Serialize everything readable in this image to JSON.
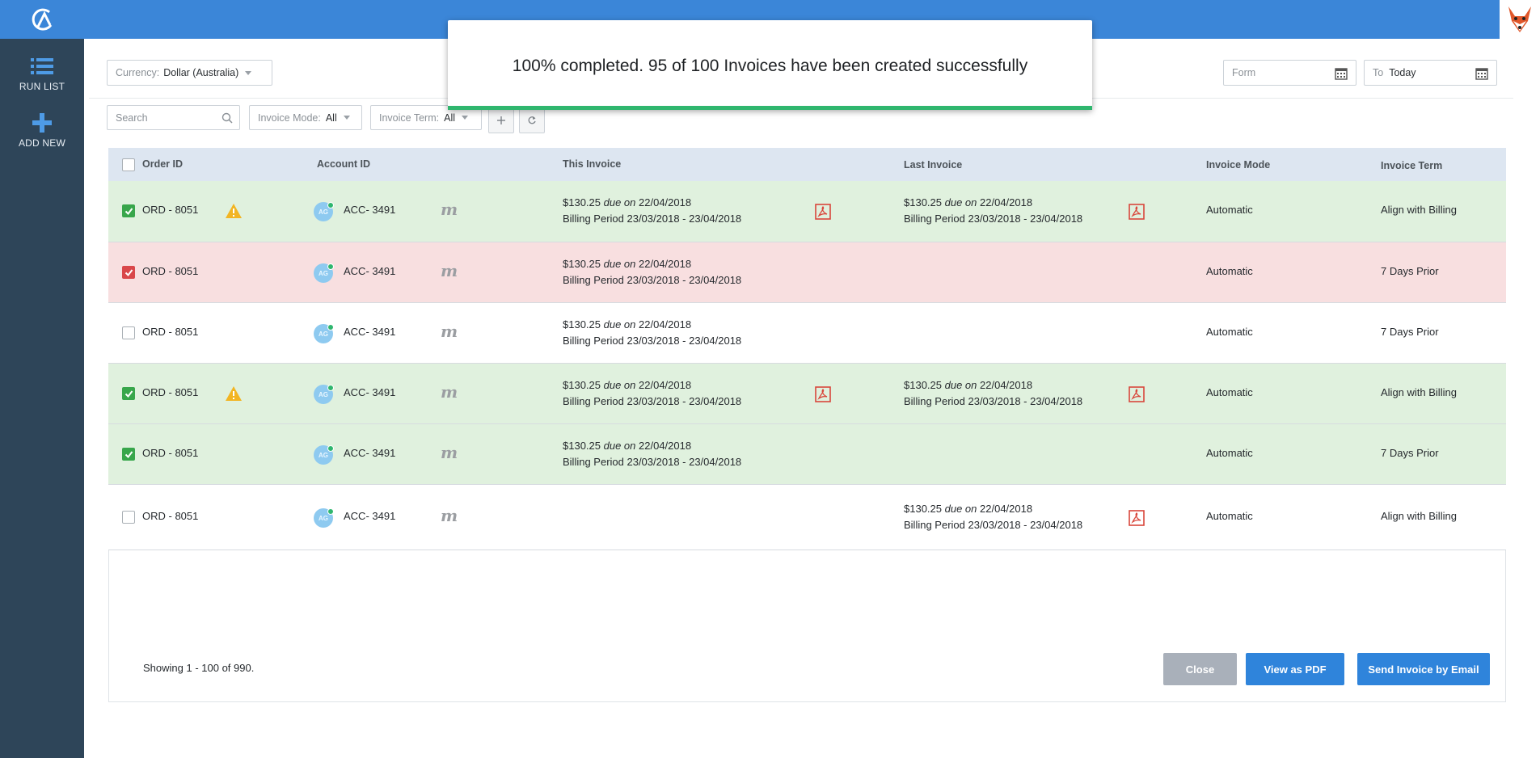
{
  "sidebar": {
    "items": [
      {
        "label": "RUN LIST",
        "icon": "list-icon"
      },
      {
        "label": "ADD NEW",
        "icon": "plus-icon"
      }
    ]
  },
  "filters": {
    "currency_label": "Currency:",
    "currency_value": "Dollar (Australia)",
    "from_placeholder": "Form",
    "to_label": "To",
    "to_value": "Today",
    "search_placeholder": "Search",
    "invoice_mode_label": "Invoice Mode:",
    "invoice_mode_value": "All",
    "invoice_term_label": "Invoice Term:",
    "invoice_term_value": "All"
  },
  "modal": {
    "message": "100% completed. 95 of 100 Invoices have been created successfully",
    "progress": 1.0,
    "color": "#2fb66e"
  },
  "table": {
    "headers": {
      "order_id": "Order ID",
      "account_id": "Account ID",
      "this_invoice": "This Invoice",
      "last_invoice": "Last Invoice",
      "invoice_mode": "Invoice Mode",
      "invoice_term": "Invoice Term"
    },
    "rows": [
      {
        "status": "green",
        "checked": true,
        "order": "ORD - 8051",
        "warning": true,
        "avatar": "AG",
        "account": "ACC- 3491",
        "this_amount": "$130.25",
        "this_due_word": "due on",
        "this_due": "22/04/2018",
        "this_period": "Billing Period 23/03/2018 - 23/04/2018",
        "this_pdf": true,
        "last_amount": "$130.25",
        "last_due_word": "due on",
        "last_due": "22/04/2018",
        "last_period": "Billing Period 23/03/2018 - 23/04/2018",
        "last_pdf": true,
        "mode": "Automatic",
        "term": "Align with Billing"
      },
      {
        "status": "red",
        "checked": true,
        "order": "ORD - 8051",
        "warning": false,
        "avatar": "AG",
        "account": "ACC- 3491",
        "this_amount": "$130.25",
        "this_due_word": "due on",
        "this_due": "22/04/2018",
        "this_period": "Billing Period 23/03/2018 - 23/04/2018",
        "this_pdf": false,
        "last_amount": "",
        "last_due_word": "",
        "last_due": "",
        "last_period": "",
        "last_pdf": false,
        "mode": "Automatic",
        "term": "7 Days Prior"
      },
      {
        "status": "white",
        "checked": false,
        "order": "ORD - 8051",
        "warning": false,
        "avatar": "AG",
        "account": "ACC- 3491",
        "this_amount": "$130.25",
        "this_due_word": "due on",
        "this_due": "22/04/2018",
        "this_period": "Billing Period 23/03/2018 - 23/04/2018",
        "this_pdf": false,
        "last_amount": "",
        "last_due_word": "",
        "last_due": "",
        "last_period": "",
        "last_pdf": false,
        "mode": "Automatic",
        "term": "7 Days Prior"
      },
      {
        "status": "green",
        "checked": true,
        "order": "ORD - 8051",
        "warning": true,
        "avatar": "AG",
        "account": "ACC- 3491",
        "this_amount": "$130.25",
        "this_due_word": "due on",
        "this_due": "22/04/2018",
        "this_period": "Billing Period 23/03/2018 - 23/04/2018",
        "this_pdf": true,
        "last_amount": "$130.25",
        "last_due_word": "due on",
        "last_due": "22/04/2018",
        "last_period": "Billing Period 23/03/2018 - 23/04/2018",
        "last_pdf": true,
        "mode": "Automatic",
        "term": "Align with Billing"
      },
      {
        "status": "green",
        "checked": true,
        "order": "ORD - 8051",
        "warning": false,
        "avatar": "AG",
        "account": "ACC- 3491",
        "this_amount": "$130.25",
        "this_due_word": "due on",
        "this_due": "22/04/2018",
        "this_period": "Billing Period 23/03/2018 - 23/04/2018",
        "this_pdf": false,
        "last_amount": "",
        "last_due_word": "",
        "last_due": "",
        "last_period": "",
        "last_pdf": false,
        "mode": "Automatic",
        "term": "7 Days Prior"
      },
      {
        "status": "white",
        "checked": false,
        "order": "ORD - 8051",
        "warning": false,
        "avatar": "AG",
        "account": "ACC- 3491",
        "this_amount": "",
        "this_due_word": "",
        "this_due": "",
        "this_period": "",
        "this_pdf": false,
        "last_amount": "$130.25",
        "last_due_word": "due on",
        "last_due": "22/04/2018",
        "last_period": "Billing Period 23/03/2018 - 23/04/2018",
        "last_pdf": true,
        "mode": "Automatic",
        "term": "Align with Billing"
      }
    ]
  },
  "footer": {
    "showing": "Showing 1 - 100 of 990.",
    "close_label": "Close",
    "pdf_label": "View as PDF",
    "email_label": "Send Invoice by Email"
  }
}
